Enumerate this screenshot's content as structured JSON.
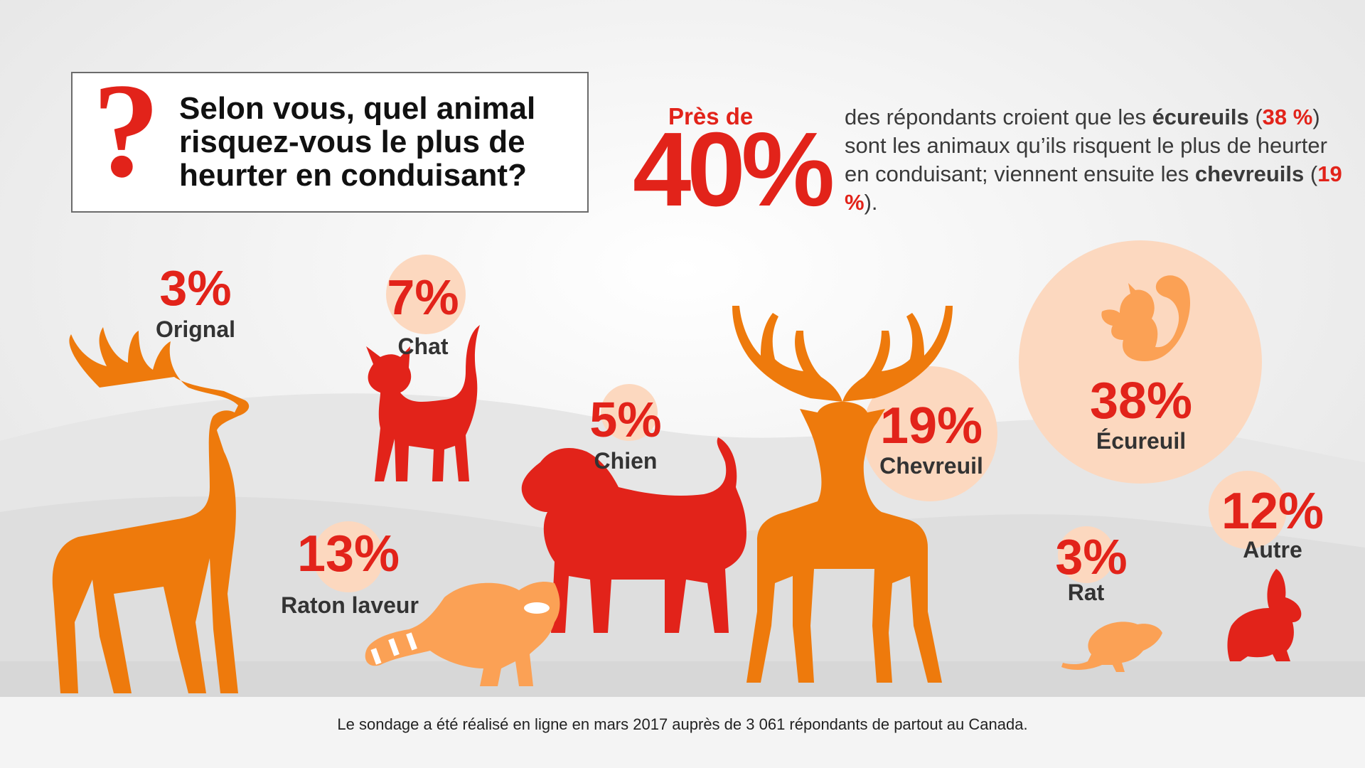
{
  "question": "Selon vous, quel animal risquez-vous le plus de heurter en conduisant?",
  "highlight": {
    "prefix": "Près de",
    "value": "40%",
    "text_1": "des répondants croient que les ",
    "bold_1": "écureuils",
    "open_1": "(",
    "pct_1": "38 %",
    "text_2": ") sont les animaux qu’ils risquent le plus de heurter en conduisant; viennent ensuite les ",
    "bold_2": "chevreuils",
    "open_2": " (",
    "pct_2": "19 %",
    "close_2": ")."
  },
  "animals": [
    {
      "label": "Orignal",
      "percent": "3%",
      "value": 3
    },
    {
      "label": "Chat",
      "percent": "7%",
      "value": 7
    },
    {
      "label": "Chien",
      "percent": "5%",
      "value": 5
    },
    {
      "label": "Chevreuil",
      "percent": "19%",
      "value": 19
    },
    {
      "label": "Écureuil",
      "percent": "38%",
      "value": 38
    },
    {
      "label": "Raton laveur",
      "percent": "13%",
      "value": 13
    },
    {
      "label": "Rat",
      "percent": "3%",
      "value": 3
    },
    {
      "label": "Autre",
      "percent": "12%",
      "value": 12
    }
  ],
  "footnote": "Le sondage a été réalisé en ligne en mars 2017 auprès de 3 061 répondants de partout au Canada.",
  "colors": {
    "red": "#e2231a",
    "orange": "#ee7a0c",
    "light_orange": "#fba155",
    "peach": "#fcd8bf"
  },
  "icons": [
    "question-mark-icon",
    "moose-icon",
    "cat-icon",
    "dog-icon",
    "deer-icon",
    "squirrel-icon",
    "raccoon-icon",
    "rat-icon",
    "rabbit-icon"
  ]
}
